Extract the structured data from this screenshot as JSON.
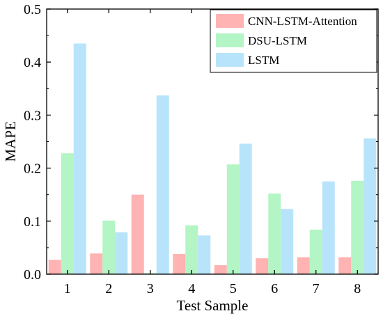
{
  "chart_data": {
    "type": "bar",
    "title": "",
    "xlabel": "Test Sample",
    "ylabel": "MAPE",
    "categories": [
      "1",
      "2",
      "3",
      "4",
      "5",
      "6",
      "7",
      "8"
    ],
    "series": [
      {
        "name": "CNN-LSTM-Attention",
        "color": "#ffb3b3",
        "values": [
          0.027,
          0.039,
          0.15,
          0.038,
          0.017,
          0.03,
          0.032,
          0.032
        ]
      },
      {
        "name": "DSU-LSTM",
        "color": "#b3f5c4",
        "values": [
          0.228,
          0.101,
          0.002,
          0.092,
          0.207,
          0.152,
          0.084,
          0.176
        ]
      },
      {
        "name": "LSTM",
        "color": "#b8e4fb",
        "values": [
          0.435,
          0.079,
          0.337,
          0.073,
          0.246,
          0.123,
          0.175,
          0.256
        ]
      }
    ],
    "ylim": [
      0,
      0.5
    ],
    "yticks": [
      "0.0",
      "0.1",
      "0.2",
      "0.3",
      "0.4",
      "0.5"
    ],
    "grid": false,
    "legend_position": "top-right"
  }
}
